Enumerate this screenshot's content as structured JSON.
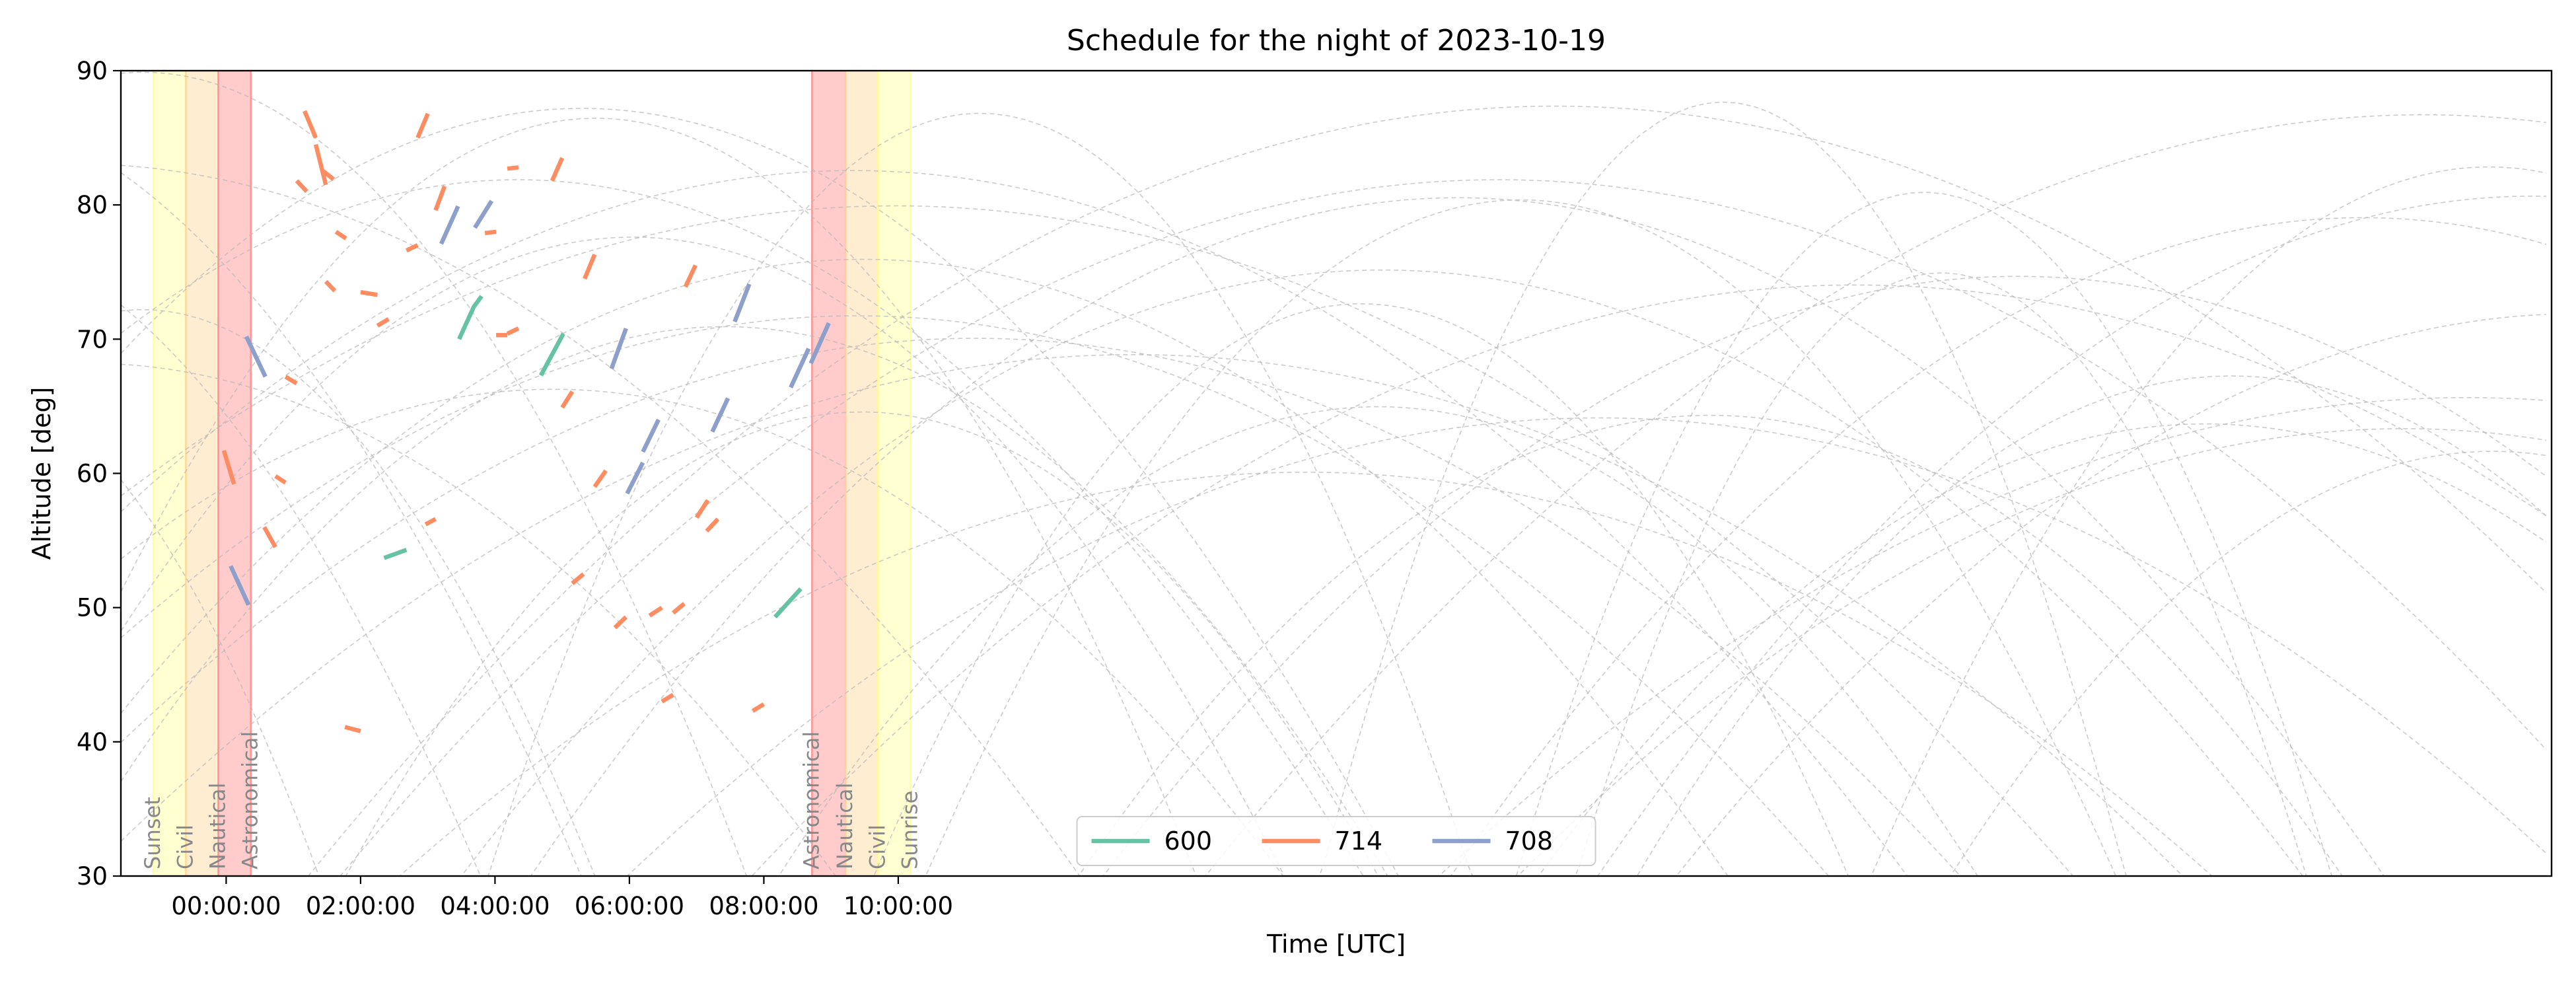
{
  "chart_data": {
    "type": "line",
    "title": "Schedule for the night of 2023-10-19",
    "xlabel": "Time [UTC]",
    "ylabel": "Altitude [deg]",
    "ylim": [
      30,
      90
    ],
    "xlim": [
      "2023-10-18T22:26",
      "2023-10-20T10:36"
    ],
    "x_ticks": [
      "00:00:00",
      "02:00:00",
      "04:00:00",
      "06:00:00",
      "08:00:00",
      "10:00:00"
    ],
    "y_ticks": [
      30,
      40,
      50,
      60,
      70,
      80,
      90
    ],
    "grid": false,
    "legend": {
      "placement": "lower center",
      "columns": 3
    },
    "twilight_bands": [
      {
        "label": "Sunset",
        "start": "2023-10-18T22:55",
        "end": "2023-10-18T23:24",
        "color": "#ffff99"
      },
      {
        "label": "Civil",
        "start": "2023-10-18T23:24",
        "end": "2023-10-18T23:53",
        "color": "#ffd699"
      },
      {
        "label": "Nautical",
        "start": "2023-10-18T23:53",
        "end": "2023-10-19T00:22",
        "color": "#ff8c8c"
      },
      {
        "label": "Astronomical",
        "start": "2023-10-19T08:43",
        "end": "2023-10-19T09:13",
        "color": "#ff8c8c"
      },
      {
        "label": "Nautical",
        "start": "2023-10-19T09:13",
        "end": "2023-10-19T09:42",
        "color": "#ffd699"
      },
      {
        "label": "Civil",
        "start": "2023-10-19T09:42",
        "end": "2023-10-19T10:11",
        "color": "#ffff99"
      }
    ],
    "edge_labels": [
      {
        "label": "Sunset",
        "at": "2023-10-18T22:55"
      },
      {
        "label": "Civil",
        "at": "2023-10-18T23:24"
      },
      {
        "label": "Nautical",
        "at": "2023-10-18T23:53"
      },
      {
        "label": "Astronomical",
        "at": "2023-10-19T00:22"
      },
      {
        "label": "Astronomical",
        "at": "2023-10-19T08:43"
      },
      {
        "label": "Nautical",
        "at": "2023-10-19T09:13"
      },
      {
        "label": "Civil",
        "at": "2023-10-19T09:42"
      },
      {
        "label": "Sunrise",
        "at": "2023-10-19T10:11"
      }
    ],
    "series": [
      {
        "name": "600",
        "color": "#66c2a5",
        "segments": [
          [
            [
              "2023-10-19T02:21",
              53.7
            ],
            [
              "2023-10-19T02:41",
              54.3
            ]
          ],
          [
            [
              "2023-10-19T03:28",
              70.0
            ],
            [
              "2023-10-19T03:41",
              72.4
            ],
            [
              "2023-10-19T03:48",
              73.2
            ]
          ],
          [
            [
              "2023-10-19T04:41",
              67.3
            ],
            [
              "2023-10-19T05:01",
              70.4
            ]
          ],
          [
            [
              "2023-10-19T08:10",
              49.3
            ],
            [
              "2023-10-19T08:33",
              51.4
            ]
          ]
        ]
      },
      {
        "name": "714",
        "color": "#fc8d62",
        "segments": [
          [
            [
              "2023-10-18T23:58",
              61.7
            ],
            [
              "2023-10-19T00:07",
              59.2
            ]
          ],
          [
            [
              "2023-10-19T00:34",
              56.0
            ],
            [
              "2023-10-19T00:44",
              54.5
            ]
          ],
          [
            [
              "2023-10-19T00:44",
              59.8
            ],
            [
              "2023-10-19T00:53",
              59.3
            ]
          ],
          [
            [
              "2023-10-19T00:53",
              67.2
            ],
            [
              "2023-10-19T01:03",
              66.7
            ]
          ],
          [
            [
              "2023-10-19T01:03",
              81.8
            ],
            [
              "2023-10-19T01:12",
              81.0
            ]
          ],
          [
            [
              "2023-10-19T01:10",
              87.0
            ],
            [
              "2023-10-19T01:20",
              85.0
            ]
          ],
          [
            [
              "2023-10-19T01:20",
              84.5
            ],
            [
              "2023-10-19T01:29",
              81.5
            ]
          ],
          [
            [
              "2023-10-19T01:27",
              82.5
            ],
            [
              "2023-10-19T01:36",
              81.9
            ]
          ],
          [
            [
              "2023-10-19T01:29",
              74.3
            ],
            [
              "2023-10-19T01:37",
              73.6
            ]
          ],
          [
            [
              "2023-10-19T01:38",
              78.0
            ],
            [
              "2023-10-19T01:47",
              77.5
            ]
          ],
          [
            [
              "2023-10-19T01:46",
              41.1
            ],
            [
              "2023-10-19T02:00",
              40.8
            ]
          ],
          [
            [
              "2023-10-19T02:00",
              73.5
            ],
            [
              "2023-10-19T02:15",
              73.3
            ]
          ],
          [
            [
              "2023-10-19T02:15",
              71.0
            ],
            [
              "2023-10-19T02:25",
              71.5
            ]
          ],
          [
            [
              "2023-10-19T02:41",
              76.6
            ],
            [
              "2023-10-19T02:51",
              77.0
            ]
          ],
          [
            [
              "2023-10-19T02:51",
              85.0
            ],
            [
              "2023-10-19T03:00",
              86.8
            ]
          ],
          [
            [
              "2023-10-19T02:58",
              56.2
            ],
            [
              "2023-10-19T03:07",
              56.6
            ]
          ],
          [
            [
              "2023-10-19T03:07",
              79.6
            ],
            [
              "2023-10-19T03:15",
              81.4
            ]
          ],
          [
            [
              "2023-10-19T03:51",
              77.9
            ],
            [
              "2023-10-19T04:01",
              78.0
            ]
          ],
          [
            [
              "2023-10-19T04:01",
              70.3
            ],
            [
              "2023-10-19T04:11",
              70.3
            ]
          ],
          [
            [
              "2023-10-19T04:11",
              70.4
            ],
            [
              "2023-10-19T04:21",
              70.8
            ]
          ],
          [
            [
              "2023-10-19T04:11",
              82.7
            ],
            [
              "2023-10-19T04:21",
              82.8
            ]
          ],
          [
            [
              "2023-10-19T04:51",
              81.8
            ],
            [
              "2023-10-19T05:00",
              83.5
            ]
          ],
          [
            [
              "2023-10-19T05:00",
              64.9
            ],
            [
              "2023-10-19T05:09",
              66.1
            ]
          ],
          [
            [
              "2023-10-19T05:09",
              51.8
            ],
            [
              "2023-10-19T05:19",
              52.5
            ]
          ],
          [
            [
              "2023-10-19T05:20",
              74.5
            ],
            [
              "2023-10-19T05:29",
              76.3
            ]
          ],
          [
            [
              "2023-10-19T05:29",
              59.0
            ],
            [
              "2023-10-19T05:39",
              60.2
            ]
          ],
          [
            [
              "2023-10-19T05:47",
              48.5
            ],
            [
              "2023-10-19T05:57",
              49.3
            ]
          ],
          [
            [
              "2023-10-19T06:18",
              49.4
            ],
            [
              "2023-10-19T06:29",
              50.0
            ]
          ],
          [
            [
              "2023-10-19T06:29",
              43.0
            ],
            [
              "2023-10-19T06:39",
              43.5
            ]
          ],
          [
            [
              "2023-10-19T06:39",
              49.6
            ],
            [
              "2023-10-19T06:49",
              50.3
            ]
          ],
          [
            [
              "2023-10-19T06:50",
              73.9
            ],
            [
              "2023-10-19T06:59",
              75.5
            ]
          ],
          [
            [
              "2023-10-19T07:00",
              56.7
            ],
            [
              "2023-10-19T07:10",
              58.0
            ]
          ],
          [
            [
              "2023-10-19T07:09",
              55.7
            ],
            [
              "2023-10-19T07:19",
              56.6
            ]
          ],
          [
            [
              "2023-10-19T07:50",
              42.3
            ],
            [
              "2023-10-19T08:00",
              42.8
            ]
          ]
        ]
      },
      {
        "name": "708",
        "color": "#8da0cb",
        "segments": [
          [
            [
              "2023-10-19T00:04",
              53.1
            ],
            [
              "2023-10-19T00:20",
              50.2
            ]
          ],
          [
            [
              "2023-10-19T00:18",
              70.2
            ],
            [
              "2023-10-19T00:35",
              67.2
            ]
          ],
          [
            [
              "2023-10-19T03:12",
              77.1
            ],
            [
              "2023-10-19T03:27",
              79.9
            ]
          ],
          [
            [
              "2023-10-19T03:42",
              78.3
            ],
            [
              "2023-10-19T03:57",
              80.3
            ]
          ],
          [
            [
              "2023-10-19T05:44",
              67.8
            ],
            [
              "2023-10-19T05:57",
              70.8
            ]
          ],
          [
            [
              "2023-10-19T05:58",
              58.5
            ],
            [
              "2023-10-19T06:12",
              60.8
            ]
          ],
          [
            [
              "2023-10-19T06:12",
              61.6
            ],
            [
              "2023-10-19T06:26",
              64.0
            ]
          ],
          [
            [
              "2023-10-19T07:14",
              63.1
            ],
            [
              "2023-10-19T07:28",
              65.6
            ]
          ],
          [
            [
              "2023-10-19T07:34",
              71.3
            ],
            [
              "2023-10-19T07:47",
              74.1
            ]
          ],
          [
            [
              "2023-10-19T08:24",
              66.4
            ],
            [
              "2023-10-19T08:40",
              69.3
            ]
          ],
          [
            [
              "2023-10-19T08:42",
              68.2
            ],
            [
              "2023-10-19T08:58",
              71.2
            ]
          ]
        ]
      }
    ]
  }
}
